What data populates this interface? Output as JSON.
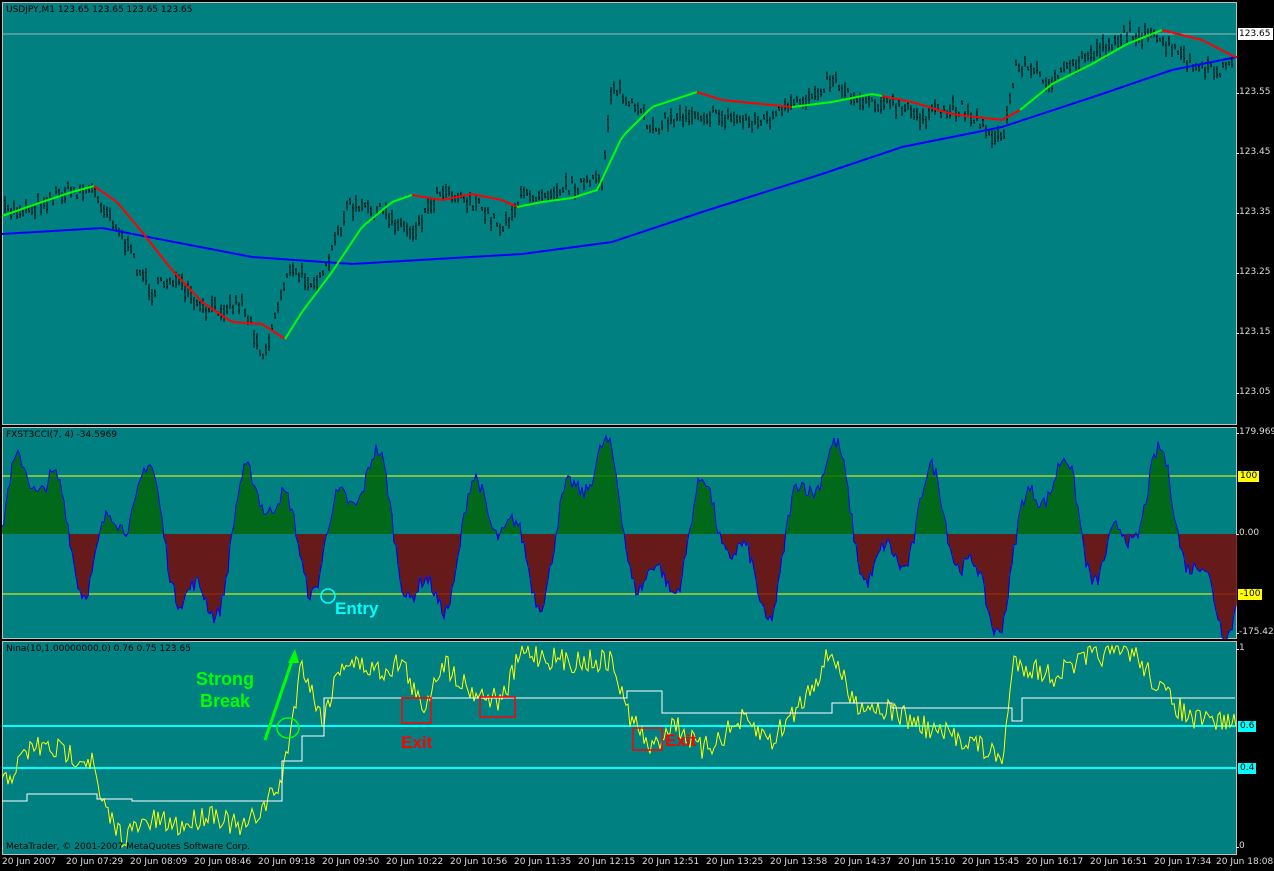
{
  "panes": {
    "price": {
      "title": "USDJPY,M1  123.65 123.65 123.65 123.65",
      "current_price": "123.65",
      "ticks": [
        "123.55",
        "123.45",
        "123.35",
        "123.25",
        "123.15",
        "123.05"
      ]
    },
    "cci": {
      "title": "FXST3CCI(7, 4) -34.5969",
      "top": "179.9699",
      "upper_level": "100",
      "zero": "0.00",
      "lower_level": "-100",
      "bottom": "-175.425"
    },
    "nina": {
      "title": "Nina(10,1.00000000,0) 0.76 0.75 123.65",
      "top": "1",
      "level_high": "0.6",
      "level_low": "0.4",
      "bottom": "0",
      "copyright": "MetaTrader, © 2001-2007 MetaQuotes Software Corp."
    }
  },
  "time_axis": [
    "20 Jun 2007",
    "20 Jun 07:29",
    "20 Jun 08:09",
    "20 Jun 08:46",
    "20 Jun 09:18",
    "20 Jun 09:50",
    "20 Jun 10:22",
    "20 Jun 10:56",
    "20 Jun 11:35",
    "20 Jun 12:15",
    "20 Jun 12:51",
    "20 Jun 13:25",
    "20 Jun 13:58",
    "20 Jun 14:37",
    "20 Jun 15:10",
    "20 Jun 15:45",
    "20 Jun 16:17",
    "20 Jun 16:51",
    "20 Jun 17:34",
    "20 Jun 18:08"
  ],
  "annotations": {
    "entry": "Entry",
    "strong_break_line1": "Strong",
    "strong_break_line2": "Break",
    "exit1": "Exit",
    "exit2": "Exit"
  },
  "colors": {
    "background": "#008080",
    "bars": "#000000",
    "ma_up": "#00ff00",
    "ma_down": "#ff0000",
    "ma_long": "#0000ff",
    "level_line": "#ffff00",
    "cci_pos_hist": "#006400",
    "cci_neg_hist": "#800000",
    "nina_main": "#ffff00",
    "nina_signal": "#ffffff",
    "nina_levels": "#00ffff",
    "entry_color": "#00ffff",
    "break_color": "#00ff00",
    "exit_color": "#ff0000"
  }
}
